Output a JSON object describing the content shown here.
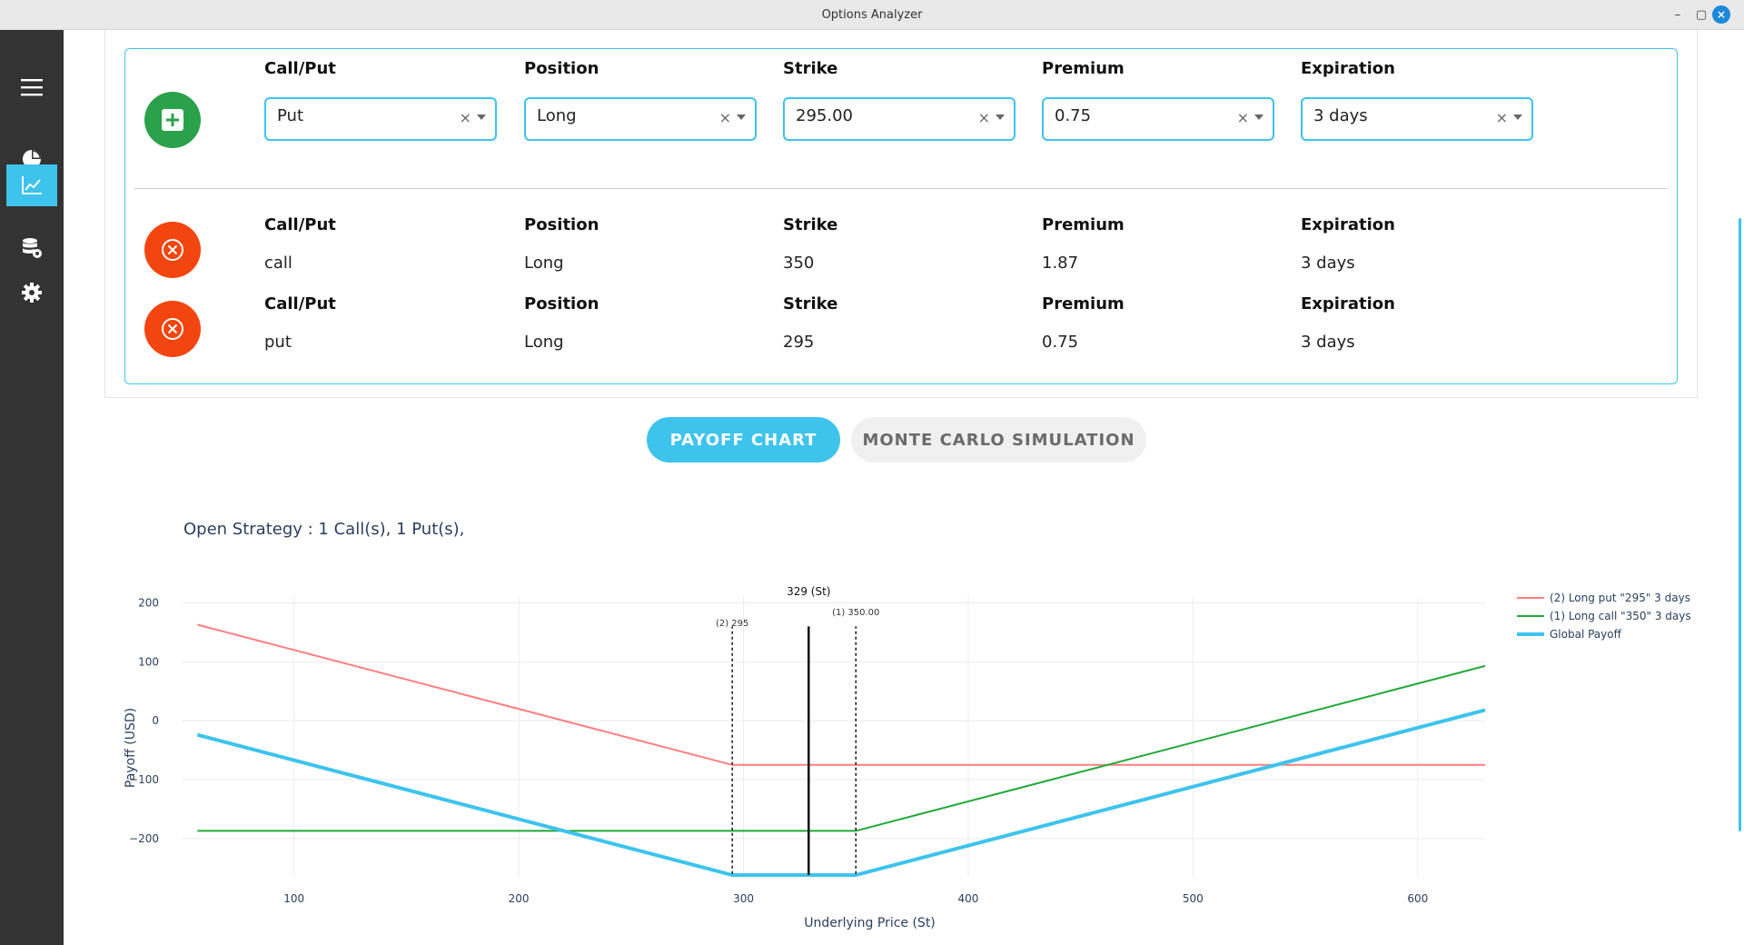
{
  "window": {
    "title": "Options Analyzer"
  },
  "sidebar": {
    "items": [
      {
        "name": "menu-icon"
      },
      {
        "name": "pie-chart-icon"
      },
      {
        "name": "line-chart-icon",
        "active": true
      },
      {
        "name": "database-icon"
      },
      {
        "name": "gear-icon"
      }
    ]
  },
  "form": {
    "headers": {
      "callput": "Call/Put",
      "position": "Position",
      "strike": "Strike",
      "premium": "Premium",
      "expiration": "Expiration"
    },
    "fields": {
      "callput": "Put",
      "position": "Long",
      "strike": "295.00",
      "premium": "0.75",
      "expiration": "3 days"
    },
    "clear_glyph": "×"
  },
  "legs": [
    {
      "callput": "call",
      "position": "Long",
      "strike": "350",
      "premium": "1.87",
      "expiration": "3 days"
    },
    {
      "callput": "put",
      "position": "Long",
      "strike": "295",
      "premium": "0.75",
      "expiration": "3 days"
    }
  ],
  "tabs": {
    "payoff": "PAYOFF CHART",
    "monte_carlo": "MONTE CARLO SIMULATION"
  },
  "strategy_text": "Open Strategy : 1 Call(s), 1 Put(s),",
  "colors": {
    "accent": "#3dc3ec",
    "add": "#2aa14a",
    "remove": "#f3450f",
    "sidebar": "#333333",
    "put_line": "#ff7f7f",
    "call_line": "#22a83a",
    "global_line": "#3dc3ec"
  },
  "chart_data": {
    "type": "line",
    "xlabel": "Underlying Price (St)",
    "ylabel": "Payoff (USD)",
    "xlim": [
      50,
      630
    ],
    "ylim": [
      -265,
      210
    ],
    "xticks": [
      100,
      200,
      300,
      400,
      500,
      600
    ],
    "yticks": [
      200,
      100,
      0,
      -100,
      -200
    ],
    "ytick_labels": [
      "200",
      "100",
      "0",
      "−100",
      "−200"
    ],
    "grid": true,
    "legend_position": "top-right",
    "series": [
      {
        "name": "(2) Long put \"295\" 3 days",
        "color": "#ff7f7f",
        "x": [
          57,
          295,
          630
        ],
        "y": [
          163,
          -75,
          -75
        ]
      },
      {
        "name": "(1) Long call \"350\" 3 days",
        "color": "#22a83a",
        "x": [
          57,
          350,
          630
        ],
        "y": [
          -187,
          -187,
          93
        ]
      },
      {
        "name": "Global Payoff",
        "color": "#3dc3ec",
        "x": [
          57,
          295,
          350,
          630
        ],
        "y": [
          -24,
          -262,
          -262,
          18
        ]
      }
    ],
    "vlines": [
      {
        "x": 295,
        "label": "(2) 295",
        "style": "dotted"
      },
      {
        "x": 350,
        "label": "(1) 350.00",
        "style": "dotted"
      },
      {
        "x": 329,
        "label": "329 (St)",
        "style": "solid"
      }
    ]
  }
}
